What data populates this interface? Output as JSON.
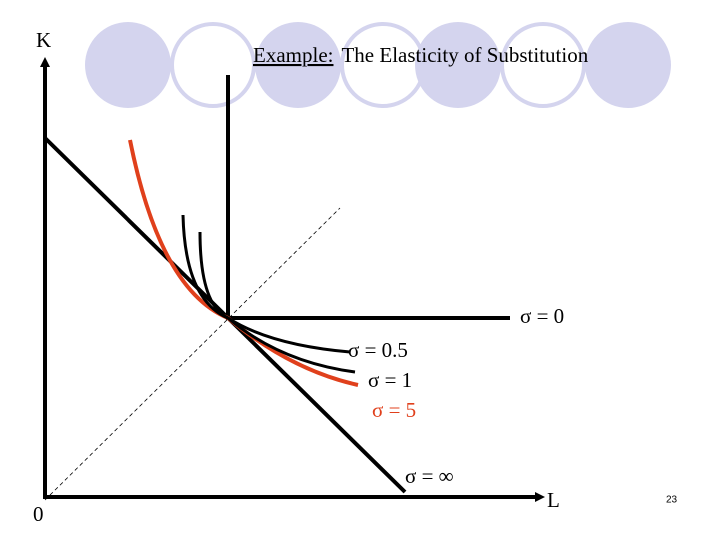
{
  "header": {
    "label": "Example:",
    "title": "The Elasticity of Substitution"
  },
  "axes": {
    "y_label": "K",
    "x_label": "L",
    "origin": "0"
  },
  "curves": [
    {
      "label": "σ = 0"
    },
    {
      "label": "σ = 0.5"
    },
    {
      "label": "σ = 1"
    },
    {
      "label": "σ = 5"
    },
    {
      "label": "σ = ∞"
    }
  ],
  "page_number": "23"
}
